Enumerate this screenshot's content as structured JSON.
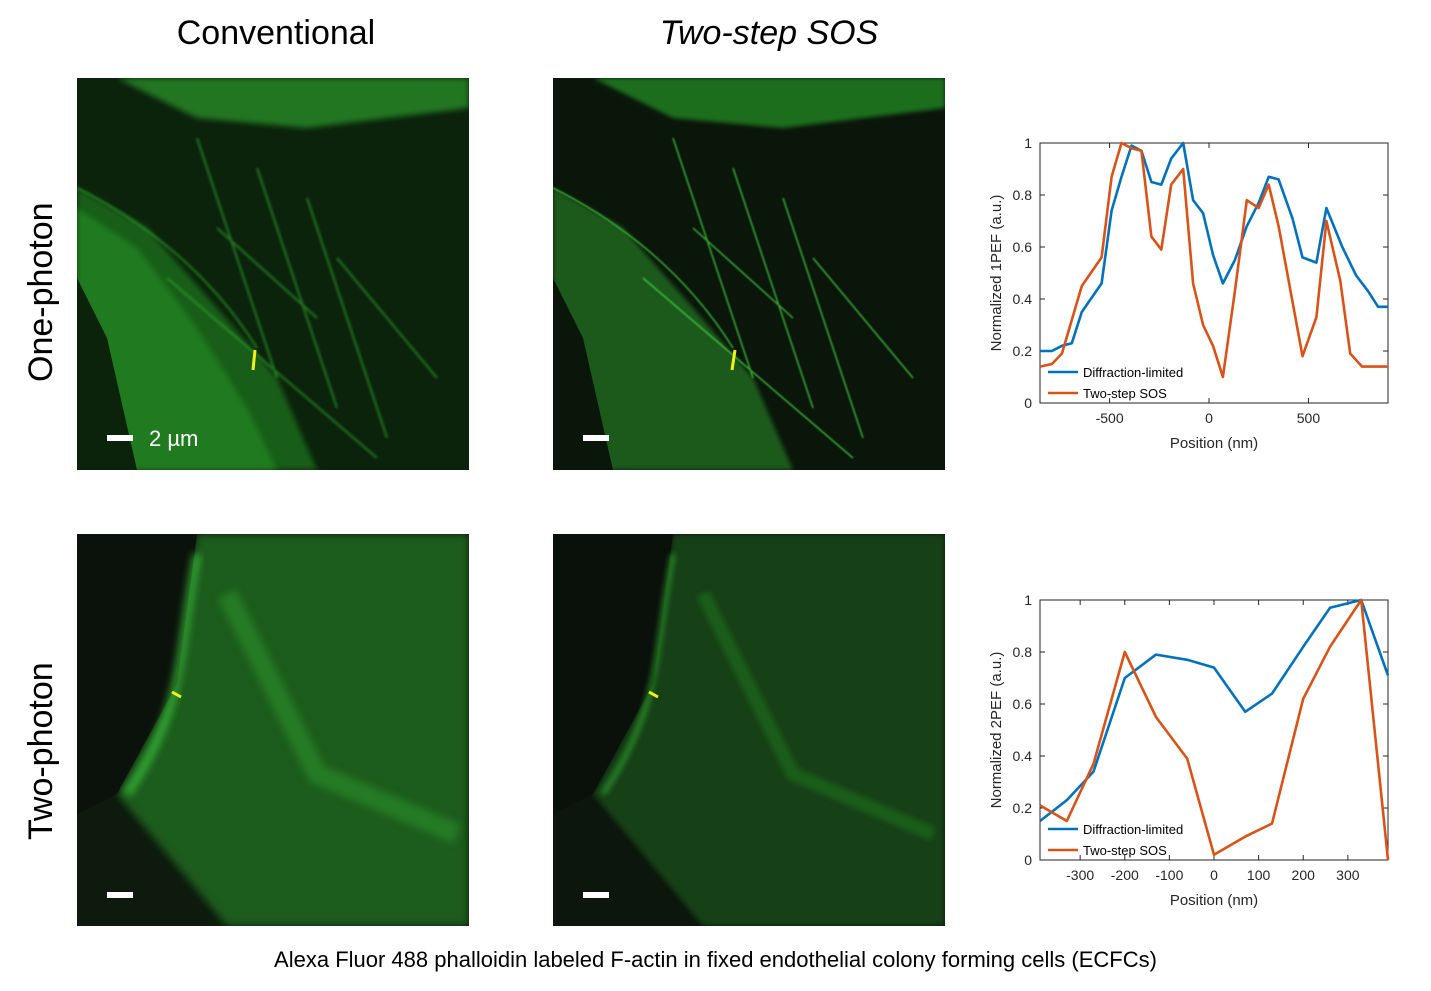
{
  "columns": {
    "conventional": "Conventional",
    "sos": "Two-step SOS"
  },
  "rows": {
    "one": "One-photon",
    "two": "Two-photon"
  },
  "scale_text": "2 µm",
  "caption": "Alexa Fluor 488 phalloidin labeled F-actin in fixed endothelial colony forming cells (ECFCs)",
  "colors": {
    "blue": "#0072BD",
    "orange": "#D95319",
    "green": "#35d235",
    "marker": "#f2f21a"
  },
  "chart_data": [
    {
      "type": "line",
      "xlabel": "Position (nm)",
      "ylabel": "Normalized 1PEF (a.u.)",
      "xlim": [
        -850,
        900
      ],
      "ylim": [
        0,
        1
      ],
      "xticks": [
        -500,
        0,
        500
      ],
      "yticks": [
        0,
        0.2,
        0.4,
        0.6,
        0.8,
        1
      ],
      "legend_position": "bottom-left",
      "series": [
        {
          "name": "Diffraction-limited",
          "color": "#0072BD",
          "x": [
            -850,
            -790,
            -740,
            -690,
            -640,
            -540,
            -490,
            -440,
            -390,
            -340,
            -290,
            -240,
            -190,
            -130,
            -80,
            -30,
            20,
            70,
            130,
            190,
            250,
            300,
            350,
            420,
            470,
            540,
            590,
            670,
            740,
            800,
            850,
            900
          ],
          "y": [
            0.2,
            0.2,
            0.22,
            0.23,
            0.35,
            0.46,
            0.74,
            0.87,
            0.99,
            0.97,
            0.85,
            0.84,
            0.94,
            1.0,
            0.78,
            0.73,
            0.57,
            0.46,
            0.55,
            0.68,
            0.77,
            0.87,
            0.86,
            0.71,
            0.56,
            0.54,
            0.75,
            0.6,
            0.49,
            0.43,
            0.37,
            0.37
          ]
        },
        {
          "name": "Two-step SOS",
          "color": "#D95319",
          "x": [
            -850,
            -790,
            -740,
            -640,
            -540,
            -490,
            -440,
            -390,
            -340,
            -290,
            -240,
            -190,
            -130,
            -80,
            -30,
            20,
            70,
            130,
            190,
            250,
            300,
            350,
            420,
            470,
            540,
            590,
            660,
            710,
            770,
            820,
            870,
            900
          ],
          "y": [
            0.14,
            0.15,
            0.19,
            0.45,
            0.56,
            0.87,
            1.0,
            0.98,
            0.97,
            0.64,
            0.59,
            0.84,
            0.9,
            0.46,
            0.3,
            0.22,
            0.1,
            0.43,
            0.78,
            0.75,
            0.84,
            0.68,
            0.39,
            0.18,
            0.33,
            0.7,
            0.47,
            0.19,
            0.14,
            0.14,
            0.14,
            0.14
          ]
        }
      ]
    },
    {
      "type": "line",
      "xlabel": "Position (nm)",
      "ylabel": "Normalized 2PEF (a.u.)",
      "xlim": [
        -390,
        390
      ],
      "ylim": [
        0,
        1
      ],
      "xticks": [
        -300,
        -200,
        -100,
        0,
        100,
        200,
        300
      ],
      "yticks": [
        0,
        0.2,
        0.4,
        0.6,
        0.8,
        1
      ],
      "legend_position": "bottom-left",
      "series": [
        {
          "name": "Diffraction-limited",
          "color": "#0072BD",
          "x": [
            -390,
            -330,
            -270,
            -200,
            -130,
            -60,
            0,
            70,
            130,
            200,
            260,
            330,
            390
          ],
          "y": [
            0.15,
            0.23,
            0.34,
            0.7,
            0.79,
            0.77,
            0.74,
            0.57,
            0.64,
            0.82,
            0.97,
            1.0,
            0.71
          ]
        },
        {
          "name": "Two-step SOS",
          "color": "#D95319",
          "x": [
            -390,
            -330,
            -270,
            -200,
            -130,
            -60,
            0,
            70,
            130,
            200,
            260,
            330,
            390
          ],
          "y": [
            0.21,
            0.15,
            0.37,
            0.8,
            0.55,
            0.39,
            0.02,
            0.09,
            0.14,
            0.62,
            0.82,
            1.0,
            0.0
          ]
        }
      ]
    }
  ]
}
